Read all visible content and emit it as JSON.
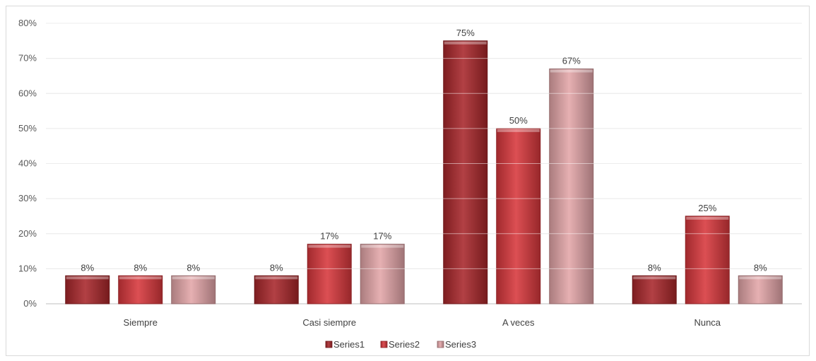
{
  "chart_data": {
    "type": "bar",
    "title": "",
    "xlabel": "",
    "ylabel": "",
    "categories": [
      "Siempre",
      "Casi siempre",
      "A veces",
      "Nunca"
    ],
    "series": [
      {
        "name": "Series1",
        "values": [
          8,
          8,
          75,
          8
        ],
        "labels": [
          "8%",
          "8%",
          "75%",
          "8%"
        ],
        "color": "#a8262a"
      },
      {
        "name": "Series2",
        "values": [
          8,
          17,
          50,
          25
        ],
        "labels": [
          "8%",
          "17%",
          "50%",
          "25%"
        ],
        "color": "#d7373c"
      },
      {
        "name": "Series3",
        "values": [
          8,
          17,
          67,
          8
        ],
        "labels": [
          "8%",
          "17%",
          "67%",
          "8%"
        ],
        "color": "#e3a5a8"
      }
    ],
    "ylim": [
      0,
      80
    ],
    "yticks": [
      0,
      10,
      20,
      30,
      40,
      50,
      60,
      70,
      80
    ],
    "ytick_labels": [
      "0%",
      "10%",
      "20%",
      "30%",
      "40%",
      "50%",
      "60%",
      "70%",
      "80%"
    ],
    "grid": true,
    "legend_position": "bottom"
  }
}
